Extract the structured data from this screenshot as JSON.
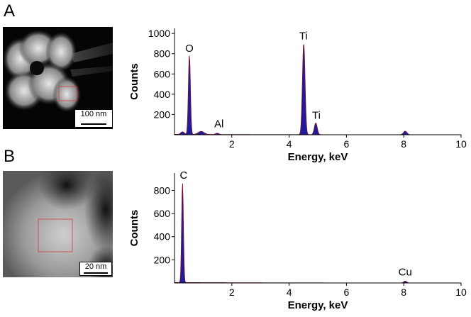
{
  "panels": [
    {
      "letter": "A",
      "scalebar_label": "100 nm",
      "spectrum": {
        "type": "area",
        "ylabel": "Counts",
        "xlabel": "Energy, keV",
        "xlim": [
          0,
          10
        ],
        "ylim": [
          0,
          1050
        ],
        "xticks": [
          "2",
          "4",
          "6",
          "8",
          "10"
        ],
        "xtick_values": [
          2,
          4,
          6,
          8,
          10
        ],
        "yticks": [
          "200",
          "400",
          "600",
          "800",
          "1000"
        ],
        "ytick_values": [
          200,
          400,
          600,
          800,
          1000
        ],
        "peaks": [
          {
            "x": 0.28,
            "y": 25,
            "w": 0.06
          },
          {
            "x": 0.52,
            "y": 780,
            "w": 0.035
          },
          {
            "x": 0.93,
            "y": 30,
            "w": 0.1
          },
          {
            "x": 1.49,
            "y": 12,
            "w": 0.06
          },
          {
            "x": 4.51,
            "y": 900,
            "w": 0.045
          },
          {
            "x": 4.93,
            "y": 115,
            "w": 0.05
          },
          {
            "x": 8.05,
            "y": 35,
            "w": 0.06
          }
        ],
        "labels": [
          {
            "text": "O",
            "x": 0.52,
            "y": 790
          },
          {
            "text": "Al",
            "x": 1.55,
            "y": 45
          },
          {
            "text": "Ti",
            "x": 4.5,
            "y": 912
          },
          {
            "text": "Ti",
            "x": 4.95,
            "y": 130
          }
        ]
      }
    },
    {
      "letter": "B",
      "scalebar_label": "20 nm",
      "spectrum": {
        "type": "area",
        "ylabel": "Counts",
        "xlabel": "Energy, keV",
        "xlim": [
          0,
          10
        ],
        "ylim": [
          0,
          950
        ],
        "xticks": [
          "2",
          "4",
          "6",
          "8",
          "10"
        ],
        "xtick_values": [
          2,
          4,
          6,
          8,
          10
        ],
        "yticks": [
          "200",
          "400",
          "600",
          "800"
        ],
        "ytick_values": [
          200,
          400,
          600,
          800
        ],
        "peaks": [
          {
            "x": 0.28,
            "y": 860,
            "w": 0.03
          },
          {
            "x": 8.05,
            "y": 15,
            "w": 0.05
          }
        ],
        "labels": [
          {
            "text": "C",
            "x": 0.32,
            "y": 875
          },
          {
            "text": "Cu",
            "x": 8.05,
            "y": 40
          }
        ]
      }
    }
  ],
  "chart_data": [
    {
      "type": "area",
      "title": "",
      "xlabel": "Energy, keV",
      "ylabel": "Counts",
      "xlim": [
        0,
        10
      ],
      "ylim": [
        0,
        1050
      ],
      "peaks": [
        {
          "element": "O",
          "energy_keV": 0.52,
          "counts": 780
        },
        {
          "element": "Al",
          "energy_keV": 1.49,
          "counts": 12
        },
        {
          "element": "Ti",
          "energy_keV": 4.51,
          "counts": 900
        },
        {
          "element": "Ti",
          "energy_keV": 4.93,
          "counts": 115
        },
        {
          "element": "",
          "energy_keV": 8.05,
          "counts": 35
        }
      ]
    },
    {
      "type": "area",
      "title": "",
      "xlabel": "Energy, keV",
      "ylabel": "Counts",
      "xlim": [
        0,
        10
      ],
      "ylim": [
        0,
        950
      ],
      "peaks": [
        {
          "element": "C",
          "energy_keV": 0.28,
          "counts": 860
        },
        {
          "element": "Cu",
          "energy_keV": 8.05,
          "counts": 15
        }
      ]
    }
  ],
  "colors": {
    "fill": "#1c1c9c",
    "outline": "#7a0f2e",
    "axis": "#000000",
    "roi": "#d23c3c"
  }
}
